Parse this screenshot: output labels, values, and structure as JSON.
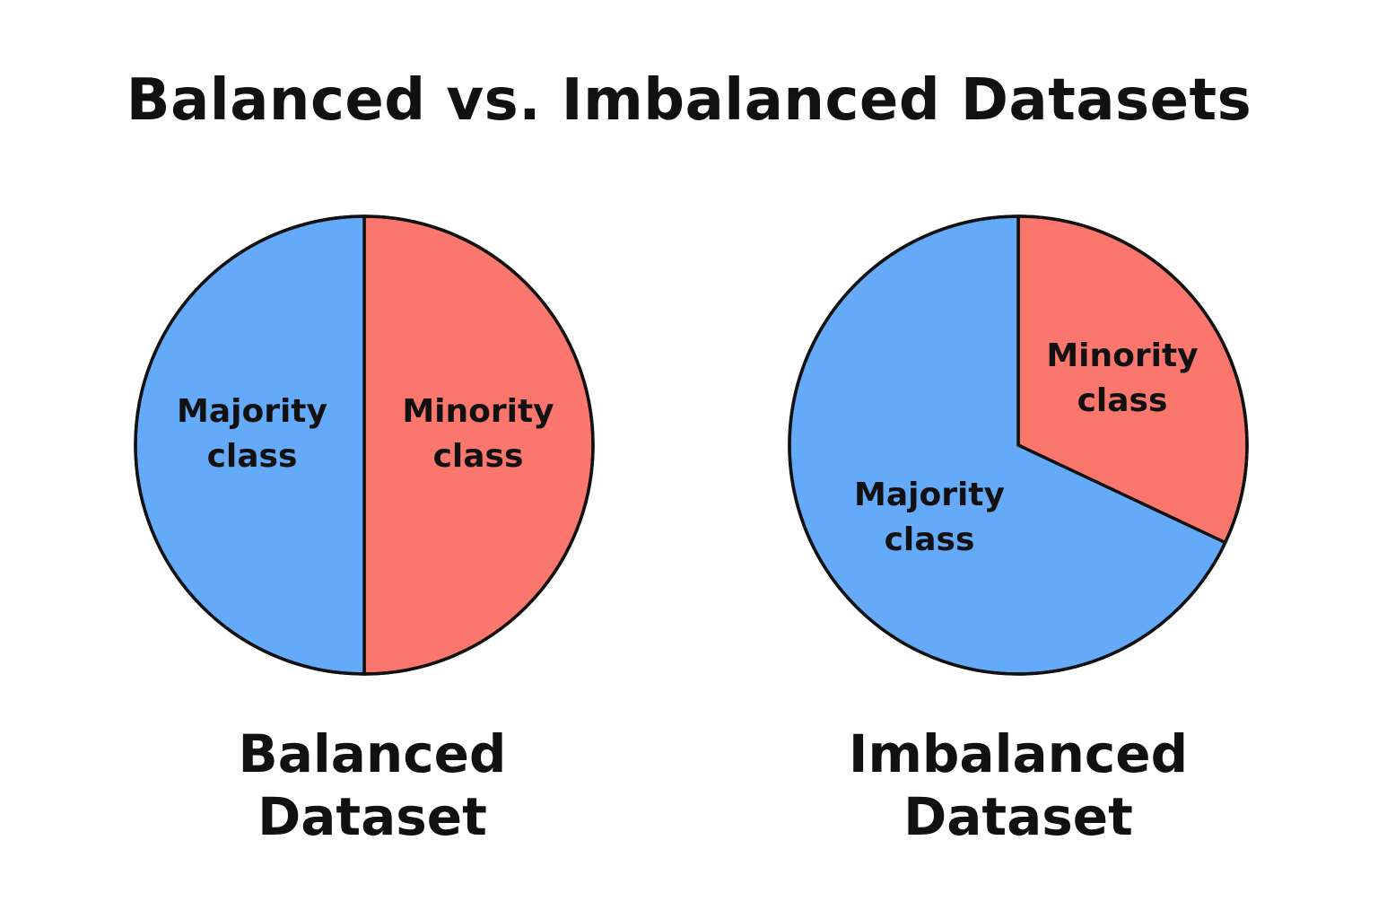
{
  "title": "Balanced vs. Imbalanced Datasets",
  "colors": {
    "majority": "#64aaf8",
    "minority": "#fb766d",
    "outline": "#111111"
  },
  "chart_data": [
    {
      "type": "pie",
      "title": "",
      "caption_lines": [
        "Balanced",
        "Dataset"
      ],
      "slices": [
        {
          "label_lines": [
            "Majority",
            "class"
          ],
          "value": 50,
          "color_key": "majority"
        },
        {
          "label_lines": [
            "Minority",
            "class"
          ],
          "value": 50,
          "color_key": "minority"
        }
      ]
    },
    {
      "type": "pie",
      "title": "",
      "caption_lines": [
        "Imbalanced",
        "Dataset"
      ],
      "slices": [
        {
          "label_lines": [
            "Majority",
            "class"
          ],
          "value": 68,
          "color_key": "majority"
        },
        {
          "label_lines": [
            "Minority",
            "class"
          ],
          "value": 32,
          "color_key": "minority"
        }
      ]
    }
  ]
}
